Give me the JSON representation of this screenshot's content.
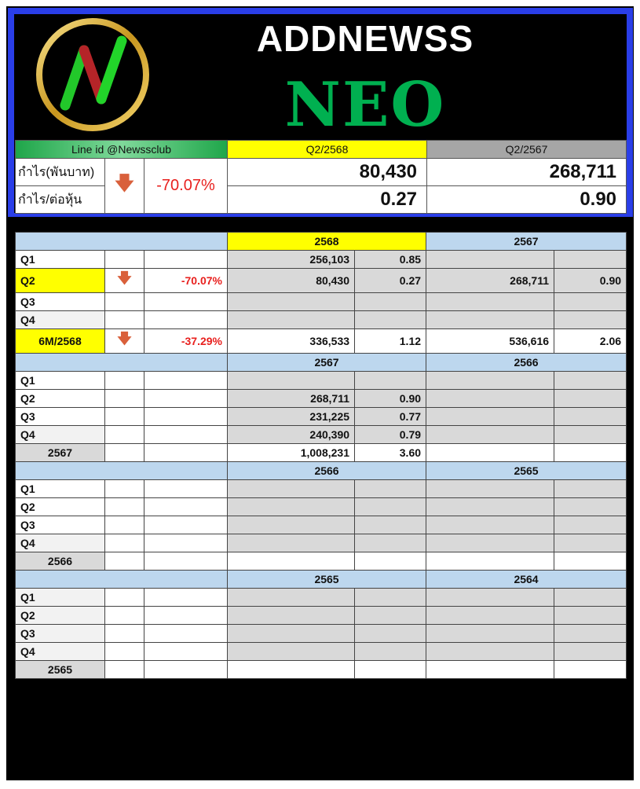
{
  "header": {
    "brand": "ADDNEWSS",
    "ticker": "NEO",
    "line_id": "Line id @Newssclub",
    "col_a": "Q2/2568",
    "col_b": "Q2/2567",
    "row_profit_label": "กำไร(พันบาท)",
    "row_eps_label": "กำไร/ต่อหุ้น",
    "change_icon": "arrow-down-icon",
    "change": "-70.07%",
    "profit_a": "80,430",
    "profit_b": "268,711",
    "eps_a": "0.27",
    "eps_b": "0.90"
  },
  "colors": {
    "border": "#2a3ee8",
    "ticker": "#00b050",
    "highlight": "#ffff00",
    "header_blue": "#bdd7ee",
    "down": "#d9603b"
  },
  "sections": [
    {
      "year_a": "2568",
      "year_b": "2567",
      "highlight_a": true,
      "rows": [
        {
          "label": "Q1",
          "arrow": "",
          "pct": "",
          "va": "256,103",
          "ea": "0.85",
          "vb": "",
          "eb": ""
        },
        {
          "label": "Q2",
          "arrow": "down",
          "pct": "-70.07%",
          "va": "80,430",
          "ea": "0.27",
          "vb": "268,711",
          "eb": "0.90",
          "hl": true
        },
        {
          "label": "Q3",
          "arrow": "",
          "pct": "",
          "va": "",
          "ea": "",
          "vb": "",
          "eb": ""
        },
        {
          "label": "Q4",
          "arrow": "",
          "pct": "",
          "va": "",
          "ea": "",
          "vb": "",
          "eb": ""
        },
        {
          "label": "6M/2568",
          "arrow": "down",
          "pct": "-37.29%",
          "va": "336,533",
          "ea": "1.12",
          "vb": "536,616",
          "eb": "2.06",
          "hl": true,
          "total": true
        }
      ]
    },
    {
      "year_a": "2567",
      "year_b": "2566",
      "rows": [
        {
          "label": "Q1",
          "arrow": "",
          "pct": "",
          "va": "",
          "ea": "",
          "vb": "",
          "eb": ""
        },
        {
          "label": "Q2",
          "arrow": "",
          "pct": "",
          "va": "268,711",
          "ea": "0.90",
          "vb": "",
          "eb": ""
        },
        {
          "label": "Q3",
          "arrow": "",
          "pct": "",
          "va": "231,225",
          "ea": "0.77",
          "vb": "",
          "eb": ""
        },
        {
          "label": "Q4",
          "arrow": "",
          "pct": "",
          "va": "240,390",
          "ea": "0.79",
          "vb": "",
          "eb": ""
        },
        {
          "label": "2567",
          "arrow": "",
          "pct": "",
          "va": "1,008,231",
          "ea": "3.60",
          "vb": "",
          "eb": "",
          "total": true
        }
      ]
    },
    {
      "year_a": "2566",
      "year_b": "2565",
      "rows": [
        {
          "label": "Q1",
          "arrow": "",
          "pct": "",
          "va": "",
          "ea": "",
          "vb": "",
          "eb": ""
        },
        {
          "label": "Q2",
          "arrow": "",
          "pct": "",
          "va": "",
          "ea": "",
          "vb": "",
          "eb": ""
        },
        {
          "label": "Q3",
          "arrow": "",
          "pct": "",
          "va": "",
          "ea": "",
          "vb": "",
          "eb": ""
        },
        {
          "label": "Q4",
          "arrow": "",
          "pct": "",
          "va": "",
          "ea": "",
          "vb": "",
          "eb": ""
        },
        {
          "label": "2566",
          "arrow": "",
          "pct": "",
          "va": "",
          "ea": "",
          "vb": "",
          "eb": "",
          "total": true
        }
      ]
    },
    {
      "year_a": "2565",
      "year_b": "2564",
      "allgray": true,
      "rows": [
        {
          "label": "Q1",
          "arrow": "",
          "pct": "",
          "va": "",
          "ea": "",
          "vb": "",
          "eb": ""
        },
        {
          "label": "Q2",
          "arrow": "",
          "pct": "",
          "va": "",
          "ea": "",
          "vb": "",
          "eb": ""
        },
        {
          "label": "Q3",
          "arrow": "",
          "pct": "",
          "va": "",
          "ea": "",
          "vb": "",
          "eb": ""
        },
        {
          "label": "Q4",
          "arrow": "",
          "pct": "",
          "va": "",
          "ea": "",
          "vb": "",
          "eb": ""
        },
        {
          "label": "2565",
          "arrow": "",
          "pct": "",
          "va": "",
          "ea": "",
          "vb": "",
          "eb": "",
          "total": true
        }
      ]
    }
  ]
}
